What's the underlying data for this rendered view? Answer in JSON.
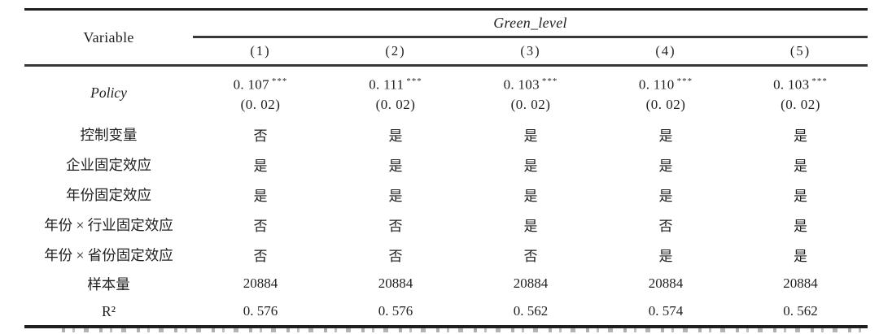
{
  "colors": {
    "background": "#ffffff",
    "text": "#1f1f1f",
    "rules": "#3a3a3a"
  },
  "table": {
    "header": {
      "variable_label": "Variable",
      "group_label": "Green_level",
      "columns": [
        "(1)",
        "(2)",
        "(3)",
        "(4)",
        "(5)"
      ]
    },
    "policy_row": {
      "label": "Policy",
      "cells": [
        {
          "coef": "0. 107",
          "stars": "***",
          "se": "(0. 02)"
        },
        {
          "coef": "0. 111",
          "stars": "***",
          "se": "(0. 02)"
        },
        {
          "coef": "0. 103",
          "stars": "***",
          "se": "(0. 02)"
        },
        {
          "coef": "0. 110",
          "stars": "***",
          "se": "(0. 02)"
        },
        {
          "coef": "0. 103",
          "stars": "***",
          "se": "(0. 02)"
        }
      ]
    },
    "rows": [
      {
        "label": "控制变量",
        "values": [
          "否",
          "是",
          "是",
          "是",
          "是"
        ]
      },
      {
        "label": "企业固定效应",
        "values": [
          "是",
          "是",
          "是",
          "是",
          "是"
        ]
      },
      {
        "label": "年份固定效应",
        "values": [
          "是",
          "是",
          "是",
          "是",
          "是"
        ]
      },
      {
        "label": "年份 × 行业固定效应",
        "values": [
          "否",
          "否",
          "是",
          "否",
          "是"
        ]
      },
      {
        "label": "年份 × 省份固定效应",
        "values": [
          "否",
          "否",
          "否",
          "是",
          "是"
        ]
      },
      {
        "label": "样本量",
        "values": [
          "20884",
          "20884",
          "20884",
          "20884",
          "20884"
        ]
      },
      {
        "label": "R²",
        "values": [
          "0. 576",
          "0. 576",
          "0. 562",
          "0. 574",
          "0. 562"
        ]
      }
    ]
  }
}
